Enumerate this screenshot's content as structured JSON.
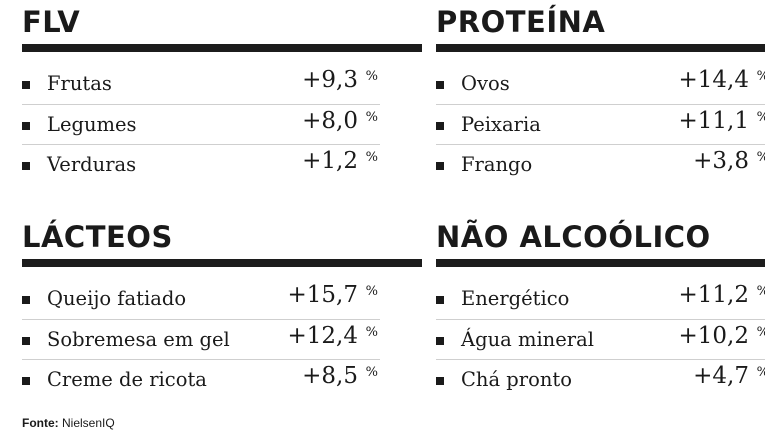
{
  "sections": [
    {
      "title": "FLV",
      "items": [
        {
          "label": "Frutas",
          "value": "+9,3"
        },
        {
          "label": "Legumes",
          "value": "+8,0"
        },
        {
          "label": "Verduras",
          "value": "+1,2"
        }
      ]
    },
    {
      "title": "PROTEÍNA",
      "items": [
        {
          "label": "Ovos",
          "value": "+14,4"
        },
        {
          "label": "Peixaria",
          "value": "+11,1"
        },
        {
          "label": "Frango",
          "value": "+3,8"
        }
      ]
    },
    {
      "title": "LÁCTEOS",
      "items": [
        {
          "label": "Queijo fatiado",
          "value": "+15,7"
        },
        {
          "label": "Sobremesa em gel",
          "value": "+12,4"
        },
        {
          "label": "Creme de ricota",
          "value": "+8,5"
        }
      ]
    },
    {
      "title": "NÃO ALCOÓLICO",
      "items": [
        {
          "label": "Energético",
          "value": "+11,2"
        },
        {
          "label": "Água mineral",
          "value": "+10,2"
        },
        {
          "label": "Chá pronto",
          "value": "+4,7"
        }
      ]
    }
  ],
  "unit": "%",
  "source": {
    "label": "Fonte:",
    "text": "NielsenIQ"
  }
}
